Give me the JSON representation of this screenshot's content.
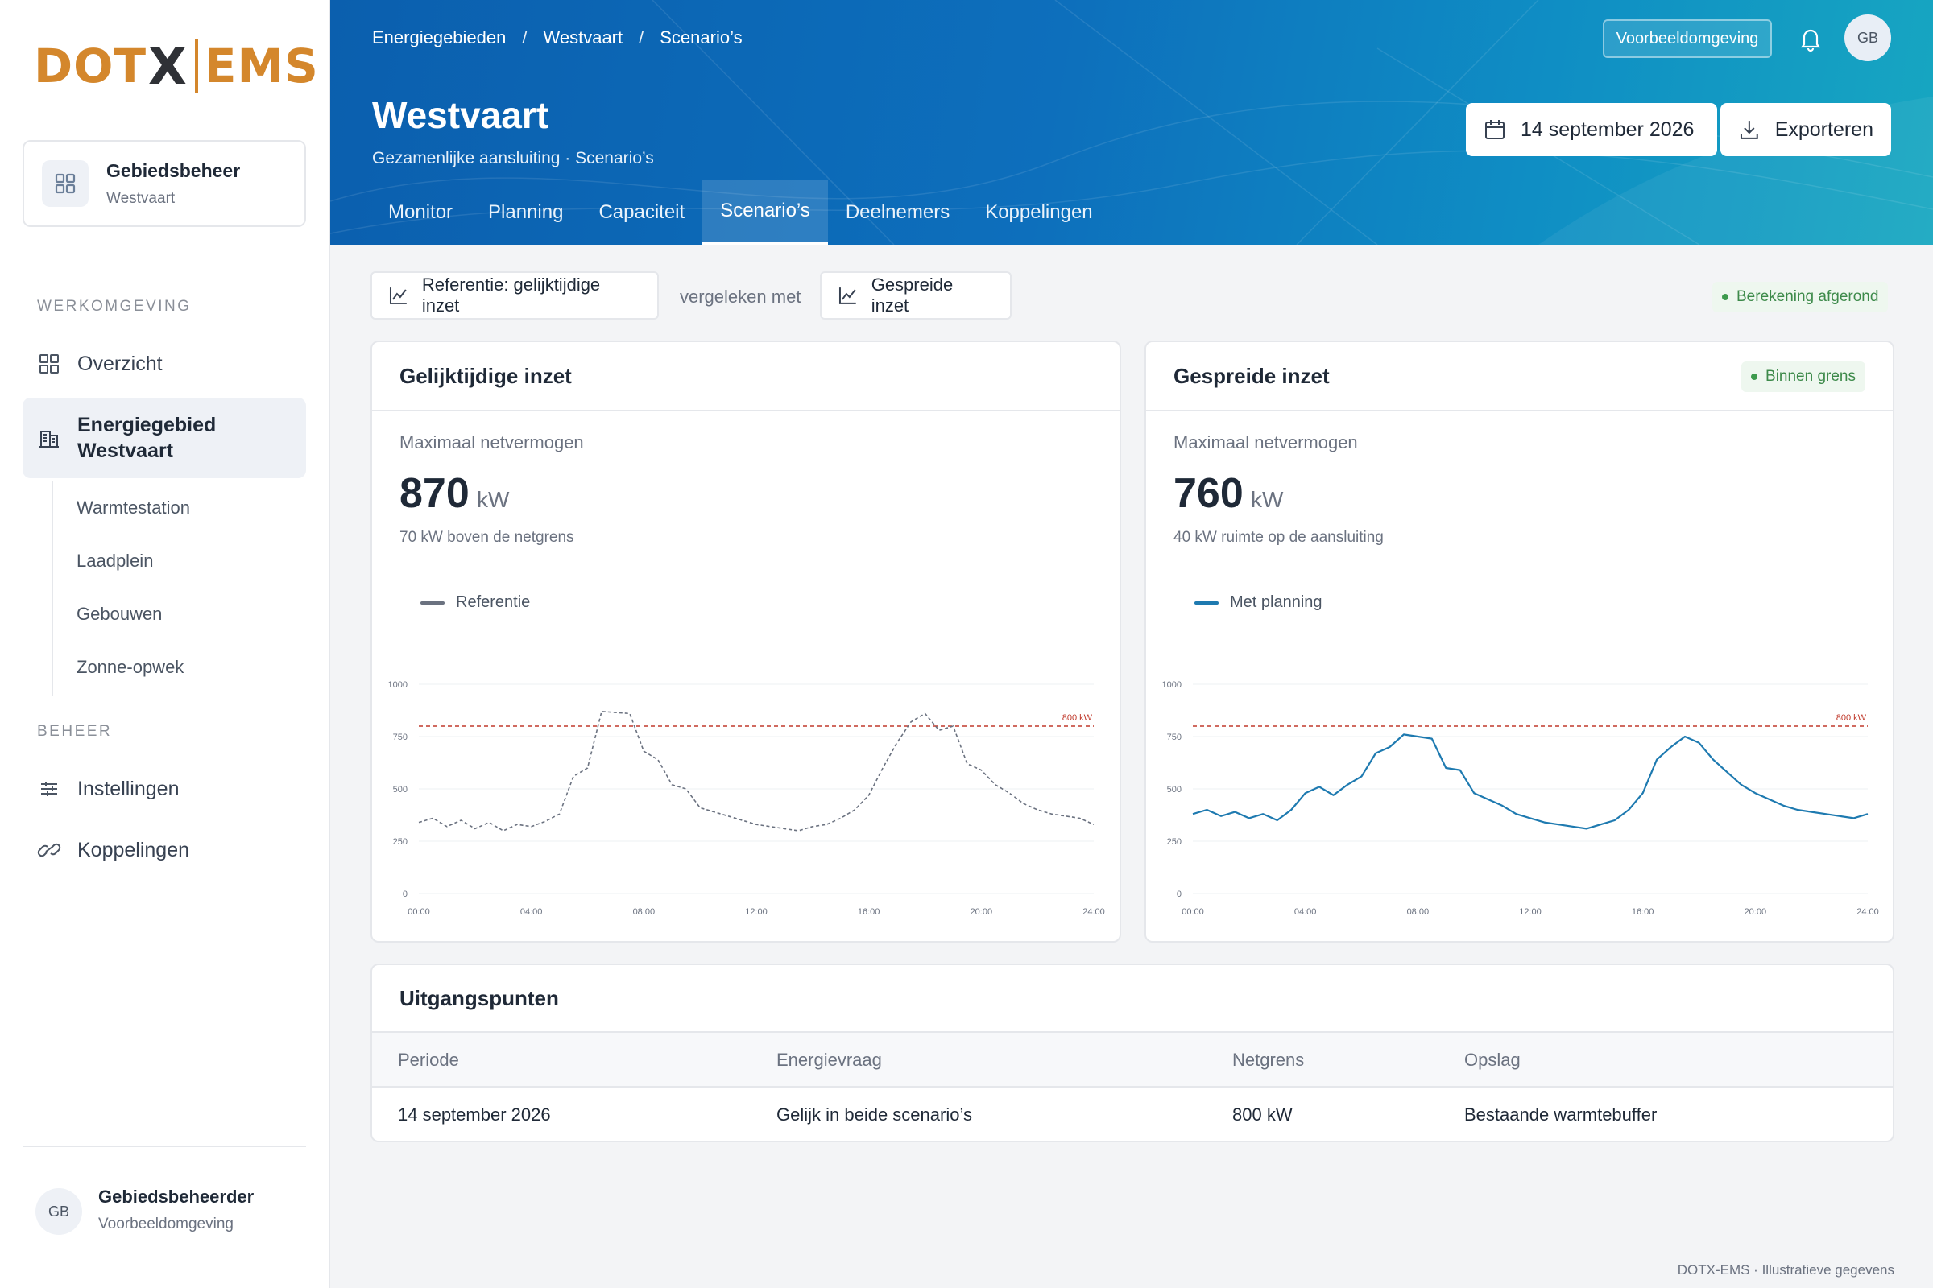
{
  "logo": {
    "part1": "DOT",
    "part2": "X",
    "part3": "EMS"
  },
  "org": {
    "title": "Gebiedsbeheer",
    "subtitle": "Westvaart"
  },
  "sidebar": {
    "section_work": "WERKOMGEVING",
    "overview": "Overzicht",
    "active_area_line1": "Energiegebied",
    "active_area_line2": "Westvaart",
    "sub_items": [
      "Warmtestation",
      "Laadplein",
      "Gebouwen",
      "Zonne-opwek"
    ],
    "section_manage": "BEHEER",
    "settings": "Instellingen",
    "connections": "Koppelingen"
  },
  "user": {
    "initials": "GB",
    "name": "Gebiedsbeheerder",
    "env": "Voorbeeldomgeving"
  },
  "header": {
    "breadcrumb": [
      "Energiegebieden",
      "Westvaart",
      "Scenario’s"
    ],
    "env_badge": "Voorbeeldomgeving",
    "avatar": "GB",
    "title": "Westvaart",
    "subtitle": "Gezamenlijke aansluiting · Scenario’s",
    "date_button": "14 september 2026",
    "export_button": "Exporteren",
    "tabs": [
      "Monitor",
      "Planning",
      "Capaciteit",
      "Scenario’s",
      "Deelnemers",
      "Koppelingen"
    ],
    "active_tab": "Scenario’s"
  },
  "toolbar": {
    "reference": "Referentie: gelijktijdige inzet",
    "compare_text": "vergeleken met",
    "alternative": "Gespreide inzet",
    "status": "Berekening afgerond"
  },
  "panels": [
    {
      "title": "Gelijktijdige inzet",
      "metric_label": "Maximaal netvermogen",
      "value": "870",
      "unit": "kW",
      "note": "70 kW boven de netgrens",
      "legend": "Referentie"
    },
    {
      "title": "Gespreide inzet",
      "pill": "Binnen grens",
      "metric_label": "Maximaal netvermogen",
      "value": "760",
      "unit": "kW",
      "note": "40 kW ruimte op de aansluiting",
      "legend": "Met planning"
    }
  ],
  "chart_data": [
    {
      "type": "line",
      "x": [
        "00:00",
        "00:30",
        "01:00",
        "01:30",
        "02:00",
        "02:30",
        "03:00",
        "03:30",
        "04:00",
        "04:30",
        "05:00",
        "05:30",
        "06:00",
        "06:30",
        "07:00",
        "07:30",
        "08:00",
        "08:30",
        "09:00",
        "09:30",
        "10:00",
        "10:30",
        "11:00",
        "11:30",
        "12:00",
        "12:30",
        "13:00",
        "13:30",
        "14:00",
        "14:30",
        "15:00",
        "15:30",
        "16:00",
        "16:30",
        "17:00",
        "17:30",
        "18:00",
        "18:30",
        "19:00",
        "19:30",
        "20:00",
        "20:30",
        "21:00",
        "21:30",
        "22:00",
        "22:30",
        "23:00",
        "23:30",
        "24:00"
      ],
      "series": [
        {
          "name": "Referentie",
          "values": [
            340,
            360,
            320,
            350,
            310,
            340,
            300,
            330,
            320,
            345,
            380,
            560,
            600,
            870,
            865,
            860,
            680,
            640,
            520,
            500,
            410,
            390,
            370,
            350,
            330,
            320,
            310,
            300,
            320,
            330,
            360,
            400,
            470,
            600,
            720,
            820,
            860,
            780,
            800,
            620,
            590,
            520,
            480,
            430,
            400,
            380,
            370,
            360,
            330
          ]
        }
      ],
      "threshold": {
        "value": 800,
        "label": "800 kW"
      },
      "yticks": [
        0,
        250,
        500,
        750,
        1000
      ],
      "xticks": [
        "00:00",
        "04:00",
        "08:00",
        "12:00",
        "16:00",
        "20:00",
        "24:00"
      ],
      "ylim": [
        0,
        1000
      ]
    },
    {
      "type": "line",
      "x": [
        "00:00",
        "00:30",
        "01:00",
        "01:30",
        "02:00",
        "02:30",
        "03:00",
        "03:30",
        "04:00",
        "04:30",
        "05:00",
        "05:30",
        "06:00",
        "06:30",
        "07:00",
        "07:30",
        "08:00",
        "08:30",
        "09:00",
        "09:30",
        "10:00",
        "10:30",
        "11:00",
        "11:30",
        "12:00",
        "12:30",
        "13:00",
        "13:30",
        "14:00",
        "14:30",
        "15:00",
        "15:30",
        "16:00",
        "16:30",
        "17:00",
        "17:30",
        "18:00",
        "18:30",
        "19:00",
        "19:30",
        "20:00",
        "20:30",
        "21:00",
        "21:30",
        "22:00",
        "22:30",
        "23:00",
        "23:30",
        "24:00"
      ],
      "series": [
        {
          "name": "Met planning",
          "values": [
            380,
            400,
            370,
            390,
            360,
            380,
            350,
            400,
            480,
            510,
            470,
            520,
            560,
            670,
            700,
            760,
            750,
            740,
            600,
            590,
            480,
            450,
            420,
            380,
            360,
            340,
            330,
            320,
            310,
            330,
            350,
            400,
            480,
            640,
            700,
            750,
            720,
            640,
            580,
            520,
            480,
            450,
            420,
            400,
            390,
            380,
            370,
            360,
            380
          ]
        }
      ],
      "threshold": {
        "value": 800,
        "label": "800 kW"
      },
      "yticks": [
        0,
        250,
        500,
        750,
        1000
      ],
      "xticks": [
        "00:00",
        "04:00",
        "08:00",
        "12:00",
        "16:00",
        "20:00",
        "24:00"
      ],
      "ylim": [
        0,
        1000
      ]
    }
  ],
  "table": {
    "title": "Uitgangspunten",
    "columns": [
      "Periode",
      "Energievraag",
      "Netgrens",
      "Opslag"
    ],
    "rows": [
      [
        "14 september 2026",
        "Gelijk in beide scenario’s",
        "800 kW",
        "Bestaande warmtebuffer"
      ]
    ]
  },
  "footer": "DOTX-EMS · Illustratieve gegevens",
  "colors": {
    "brand_orange": "#d4872c",
    "header_blue": "#0d6fbc",
    "series_reference": "#6b7280",
    "series_planning": "#1e7ab0",
    "threshold": "#c0392b",
    "status_green": "#3d9a4d"
  }
}
